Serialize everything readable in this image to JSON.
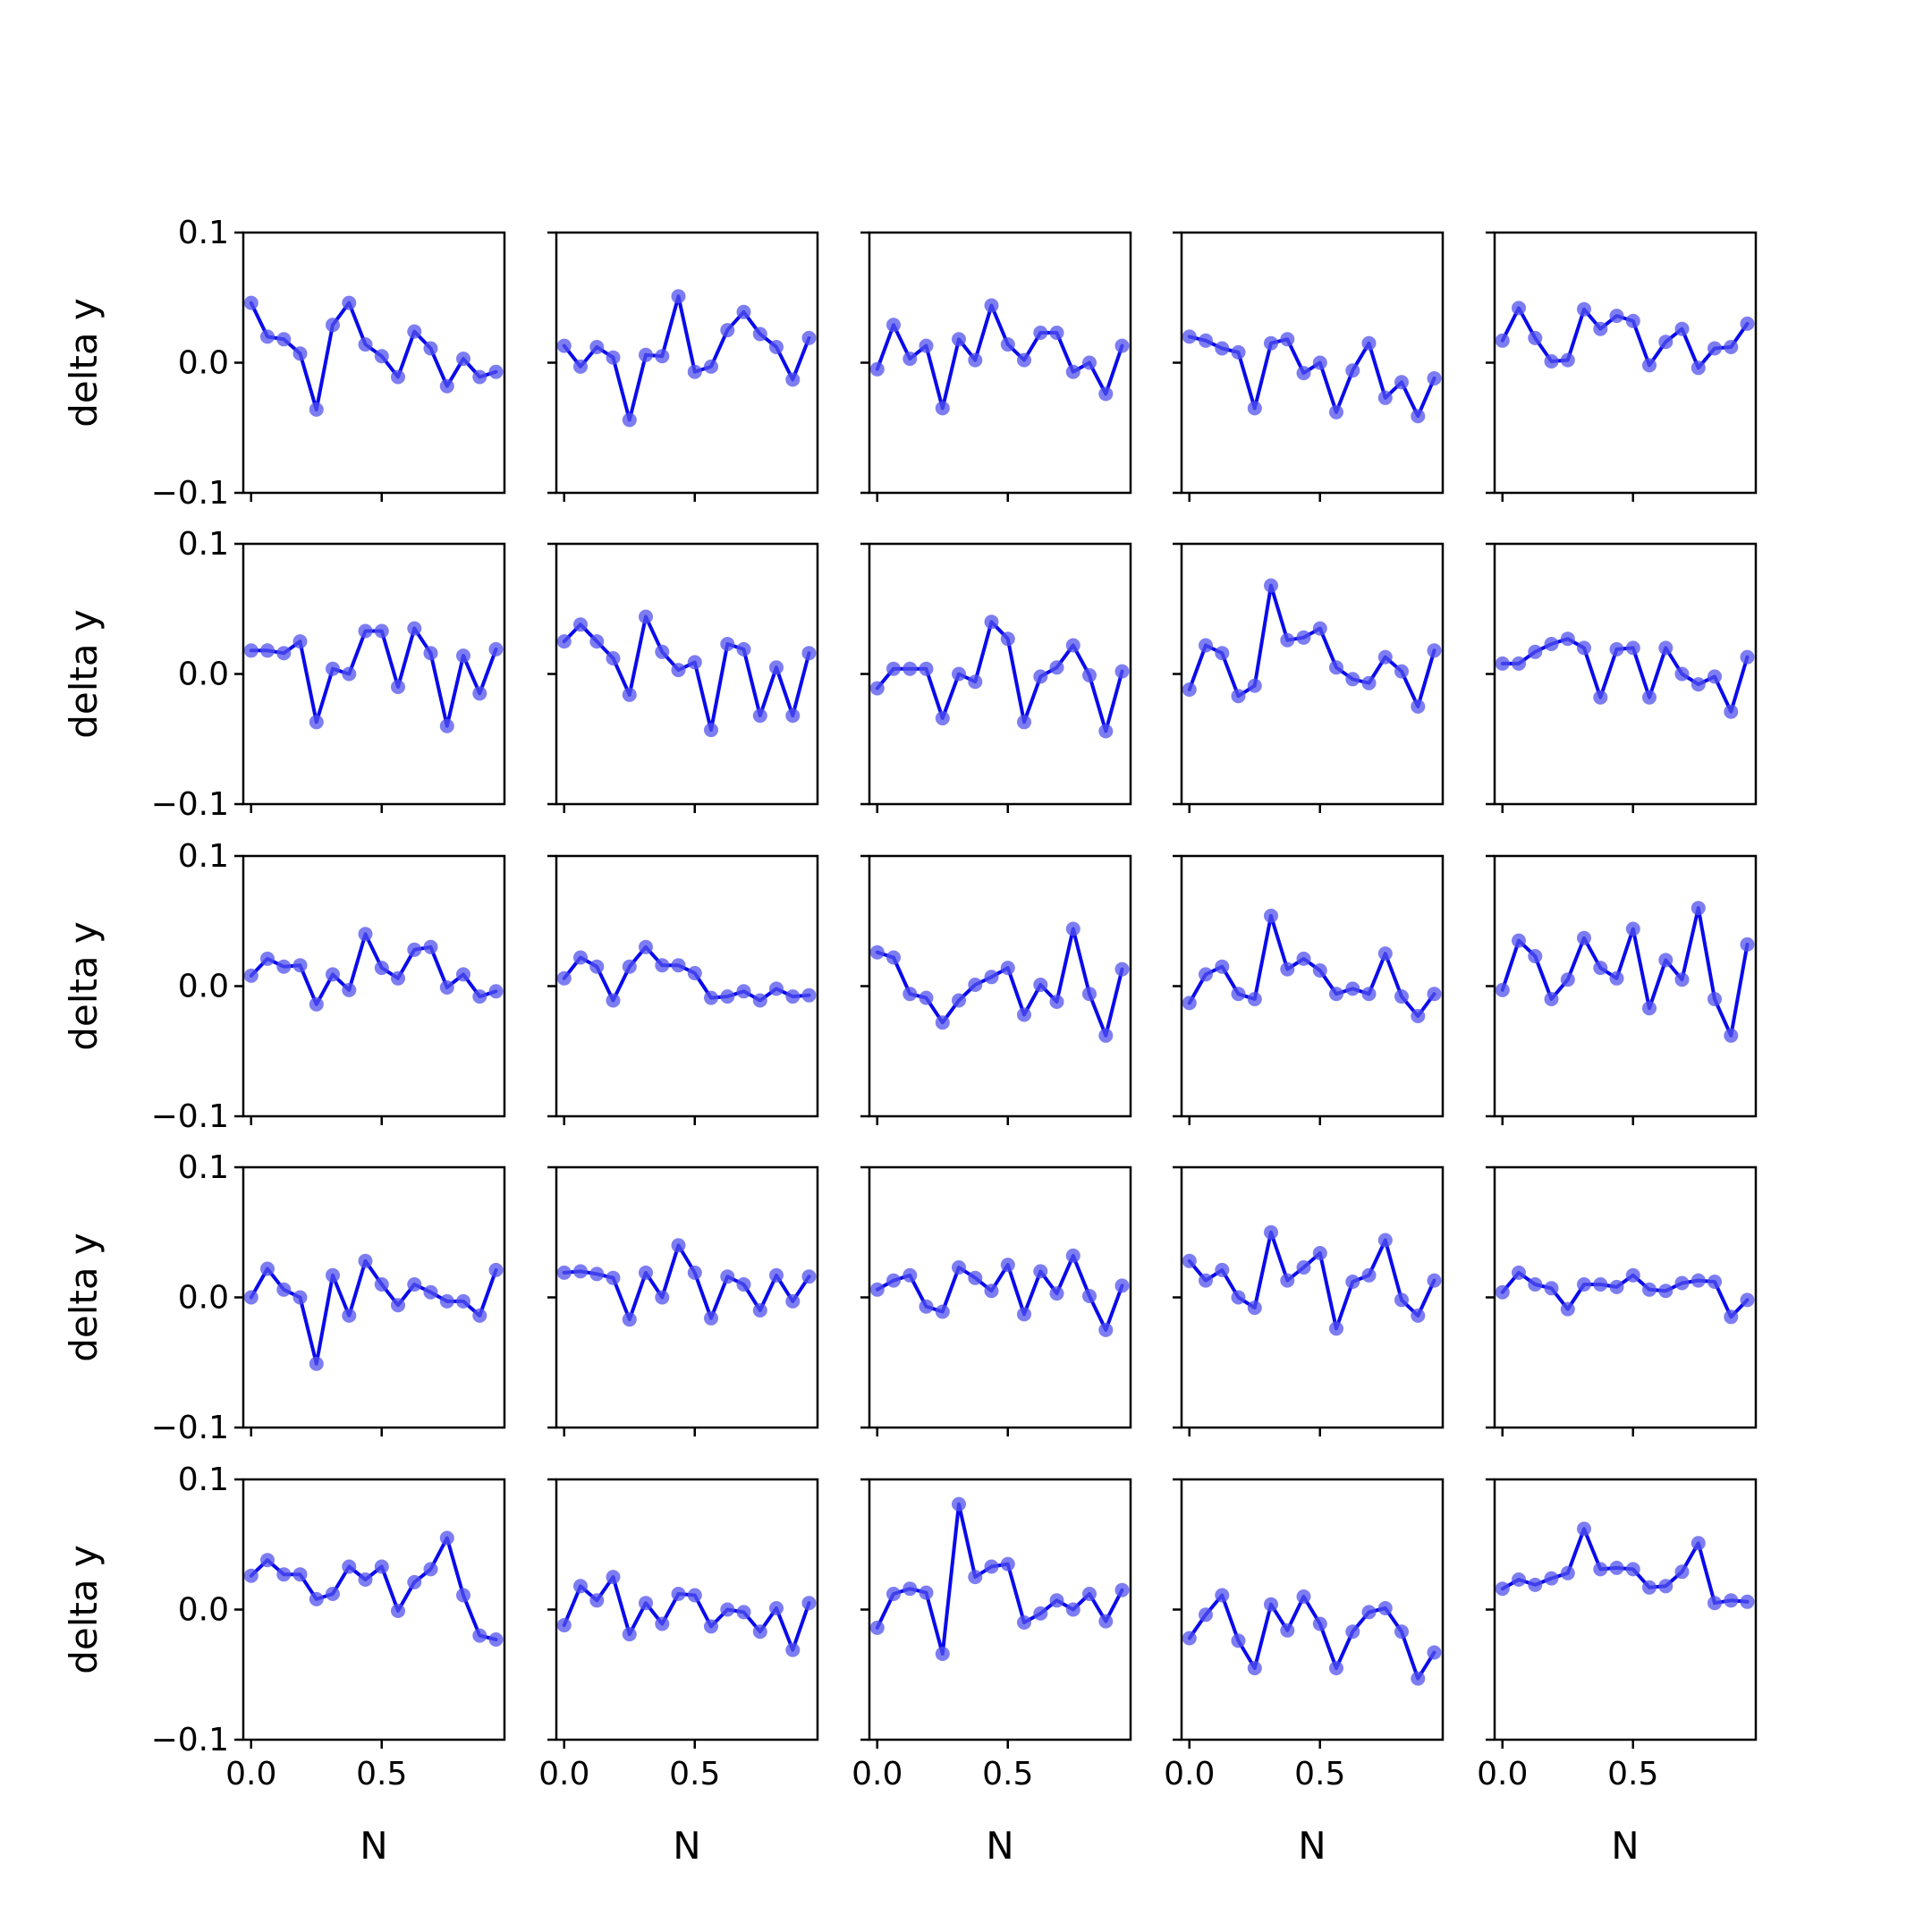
{
  "colors": {
    "line": "#0a0aec",
    "marker": "#5252ee",
    "frame": "#000000",
    "background": "#ffffff"
  },
  "chart_data": {
    "type": "line",
    "layout": "5x5 grid of small multiples",
    "grid": false,
    "xlabel": "N",
    "ylabel": "delta y",
    "xlim": [
      -0.03,
      0.97
    ],
    "ylim": [
      -0.1,
      0.1
    ],
    "x_ticks": [
      0.0,
      0.5
    ],
    "x_tick_labels": [
      "0.0",
      "0.5"
    ],
    "y_ticks": [
      -0.1,
      0.0,
      0.1
    ],
    "y_tick_labels": [
      "−0.1",
      "0.0",
      "0.1"
    ],
    "x": [
      0.0,
      0.0625,
      0.125,
      0.1875,
      0.25,
      0.3125,
      0.375,
      0.4375,
      0.5,
      0.5625,
      0.625,
      0.6875,
      0.75,
      0.8125,
      0.875,
      0.9375
    ],
    "panels": [
      [
        0.046,
        0.02,
        0.018,
        0.007,
        -0.036,
        0.029,
        0.046,
        0.014,
        0.005,
        -0.011,
        0.024,
        0.011,
        -0.018,
        0.003,
        -0.011,
        -0.007
      ],
      [
        0.013,
        -0.003,
        0.012,
        0.004,
        -0.044,
        0.006,
        0.005,
        0.051,
        -0.007,
        -0.003,
        0.025,
        0.039,
        0.022,
        0.012,
        -0.013,
        0.019
      ],
      [
        -0.005,
        0.029,
        0.003,
        0.013,
        -0.035,
        0.018,
        0.002,
        0.044,
        0.014,
        0.002,
        0.023,
        0.023,
        -0.007,
        0.0,
        -0.024,
        0.013
      ],
      [
        0.02,
        0.017,
        0.011,
        0.008,
        -0.035,
        0.015,
        0.018,
        -0.008,
        0.0,
        -0.038,
        -0.006,
        0.015,
        -0.027,
        -0.015,
        -0.041,
        -0.012
      ],
      [
        0.017,
        0.042,
        0.019,
        0.001,
        0.002,
        0.041,
        0.026,
        0.036,
        0.032,
        -0.002,
        0.016,
        0.026,
        -0.004,
        0.011,
        0.012,
        0.03
      ],
      [
        0.018,
        0.018,
        0.016,
        0.025,
        -0.037,
        0.004,
        0.0,
        0.033,
        0.033,
        -0.01,
        0.035,
        0.016,
        -0.04,
        0.014,
        -0.015,
        0.019
      ],
      [
        0.025,
        0.038,
        0.025,
        0.012,
        -0.016,
        0.044,
        0.017,
        0.003,
        0.009,
        -0.043,
        0.023,
        0.019,
        -0.032,
        0.005,
        -0.032,
        0.016
      ],
      [
        -0.011,
        0.004,
        0.004,
        0.004,
        -0.034,
        0.0,
        -0.006,
        0.04,
        0.027,
        -0.037,
        -0.002,
        0.005,
        0.022,
        -0.001,
        -0.044,
        0.002
      ],
      [
        -0.012,
        0.022,
        0.016,
        -0.017,
        -0.009,
        0.068,
        0.026,
        0.028,
        0.035,
        0.005,
        -0.004,
        -0.007,
        0.013,
        0.002,
        -0.025,
        0.018
      ],
      [
        0.008,
        0.008,
        0.017,
        0.023,
        0.027,
        0.02,
        -0.018,
        0.019,
        0.02,
        -0.018,
        0.02,
        0.0,
        -0.008,
        -0.002,
        -0.029,
        0.013
      ]
    ],
    "panels_continued": [
      [
        0.008,
        0.021,
        0.015,
        0.016,
        -0.014,
        0.009,
        -0.003,
        0.04,
        0.014,
        0.006,
        0.028,
        0.03,
        -0.001,
        0.009,
        -0.008,
        -0.004
      ],
      [
        0.006,
        0.022,
        0.015,
        -0.011,
        0.015,
        0.03,
        0.016,
        0.016,
        0.01,
        -0.009,
        -0.008,
        -0.004,
        -0.011,
        -0.002,
        -0.008,
        -0.007
      ],
      [
        0.026,
        0.022,
        -0.006,
        -0.009,
        -0.028,
        -0.011,
        0.001,
        0.007,
        0.014,
        -0.022,
        0.001,
        -0.012,
        0.044,
        -0.006,
        -0.038,
        0.013
      ],
      [
        -0.013,
        0.009,
        0.015,
        -0.006,
        -0.01,
        0.054,
        0.013,
        0.021,
        0.012,
        -0.006,
        -0.002,
        -0.006,
        0.025,
        -0.008,
        -0.023,
        -0.006
      ],
      [
        -0.003,
        0.035,
        0.023,
        -0.01,
        0.005,
        0.037,
        0.014,
        0.006,
        0.044,
        -0.017,
        0.02,
        0.005,
        0.06,
        -0.01,
        -0.038,
        0.032
      ],
      [
        0.0,
        0.022,
        0.006,
        0.0,
        -0.051,
        0.017,
        -0.014,
        0.028,
        0.01,
        -0.006,
        0.01,
        0.004,
        -0.003,
        -0.003,
        -0.014,
        0.021
      ],
      [
        0.019,
        0.02,
        0.018,
        0.015,
        -0.017,
        0.019,
        0.0,
        0.04,
        0.019,
        -0.016,
        0.016,
        0.01,
        -0.01,
        0.017,
        -0.003,
        0.016
      ],
      [
        0.006,
        0.013,
        0.017,
        -0.007,
        -0.011,
        0.023,
        0.015,
        0.005,
        0.025,
        -0.013,
        0.02,
        0.003,
        0.032,
        0.001,
        -0.025,
        0.009
      ],
      [
        0.028,
        0.013,
        0.021,
        0.0,
        -0.008,
        0.05,
        0.013,
        0.023,
        0.034,
        -0.024,
        0.012,
        0.017,
        0.044,
        -0.002,
        -0.014,
        0.013
      ],
      [
        0.004,
        0.019,
        0.01,
        0.007,
        -0.009,
        0.01,
        0.01,
        0.008,
        0.017,
        0.006,
        0.005,
        0.011,
        0.013,
        0.012,
        -0.015,
        -0.002
      ]
    ],
    "panels_final": [
      [
        0.026,
        0.038,
        0.027,
        0.027,
        0.008,
        0.012,
        0.033,
        0.023,
        0.033,
        -0.001,
        0.021,
        0.031,
        0.055,
        0.011,
        -0.02,
        -0.023
      ],
      [
        -0.012,
        0.018,
        0.007,
        0.025,
        -0.019,
        0.005,
        -0.011,
        0.012,
        0.011,
        -0.013,
        0.0,
        -0.002,
        -0.017,
        0.001,
        -0.031,
        0.005
      ],
      [
        -0.014,
        0.012,
        0.016,
        0.013,
        -0.034,
        0.081,
        0.025,
        0.033,
        0.035,
        -0.01,
        -0.003,
        0.007,
        0.0,
        0.012,
        -0.009,
        0.015
      ],
      [
        -0.022,
        -0.004,
        0.011,
        -0.024,
        -0.045,
        0.004,
        -0.016,
        0.01,
        -0.011,
        -0.045,
        -0.017,
        -0.002,
        0.001,
        -0.017,
        -0.053,
        -0.033
      ],
      [
        0.016,
        0.023,
        0.019,
        0.024,
        0.028,
        0.062,
        0.031,
        0.032,
        0.031,
        0.017,
        0.018,
        0.029,
        0.051,
        0.005,
        0.007,
        0.006
      ]
    ]
  }
}
